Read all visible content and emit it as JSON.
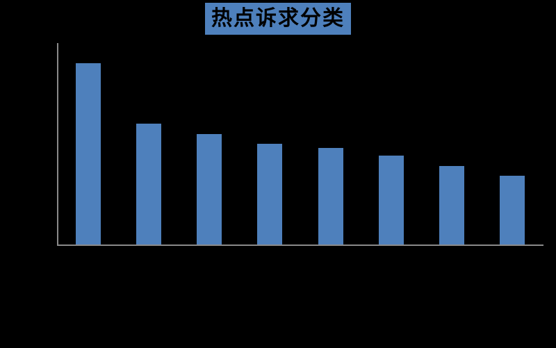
{
  "chart": {
    "title": "热点诉求分类"
  },
  "colors": {
    "background": "#000000",
    "title_bg": "#4E80BC",
    "title_text": "#000000",
    "bar_fill": "#4E80BC",
    "axis_line": "#8A8A8A"
  },
  "chart_data": {
    "type": "bar",
    "title": "热点诉求分类",
    "categories": [
      "",
      "",
      "",
      "",
      "",
      "",
      "",
      ""
    ],
    "values": [
      90,
      60,
      55,
      50,
      48,
      44,
      39,
      34
    ],
    "xlabel": "",
    "ylabel": "",
    "ylim": [
      0,
      100
    ],
    "grid": false,
    "legend": false,
    "axis_tick_labels_visible": false,
    "bar_color": "#4E80BC"
  }
}
